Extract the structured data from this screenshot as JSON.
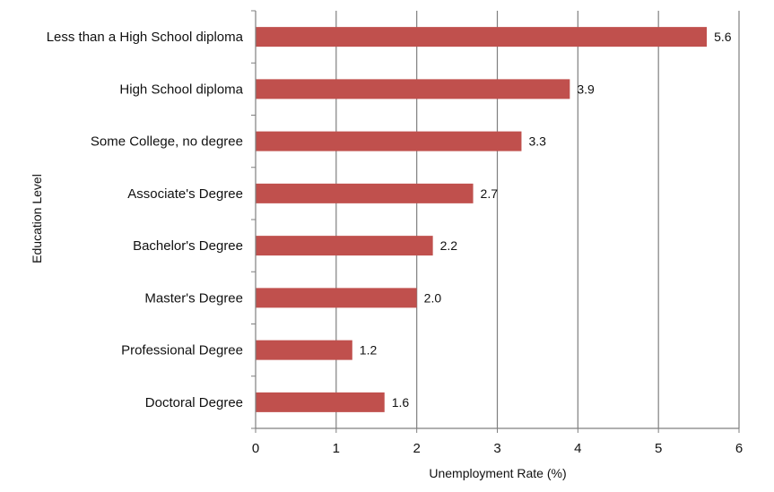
{
  "chart_data": {
    "type": "bar",
    "orientation": "horizontal",
    "categories": [
      "Less than a High School diploma",
      "High School diploma",
      "Some College, no degree",
      "Associate's Degree",
      "Bachelor's Degree",
      "Master's Degree",
      "Professional Degree",
      "Doctoral Degree"
    ],
    "values": [
      5.6,
      3.9,
      3.3,
      2.7,
      2.2,
      2.0,
      1.2,
      1.6
    ],
    "value_labels": [
      "5.6",
      "3.9",
      "3.3",
      "2.7",
      "2.2",
      "2.0",
      "1.2",
      "1.6"
    ],
    "xlabel": "Unemployment Rate (%)",
    "ylabel": "Education Level",
    "xlim": [
      0,
      6
    ],
    "xticks": [
      "0",
      "1",
      "2",
      "3",
      "4",
      "5",
      "6"
    ],
    "grid": "vertical",
    "legend": "none",
    "bar_color": "#c0504d",
    "gridline_color": "#7f7f7f"
  }
}
